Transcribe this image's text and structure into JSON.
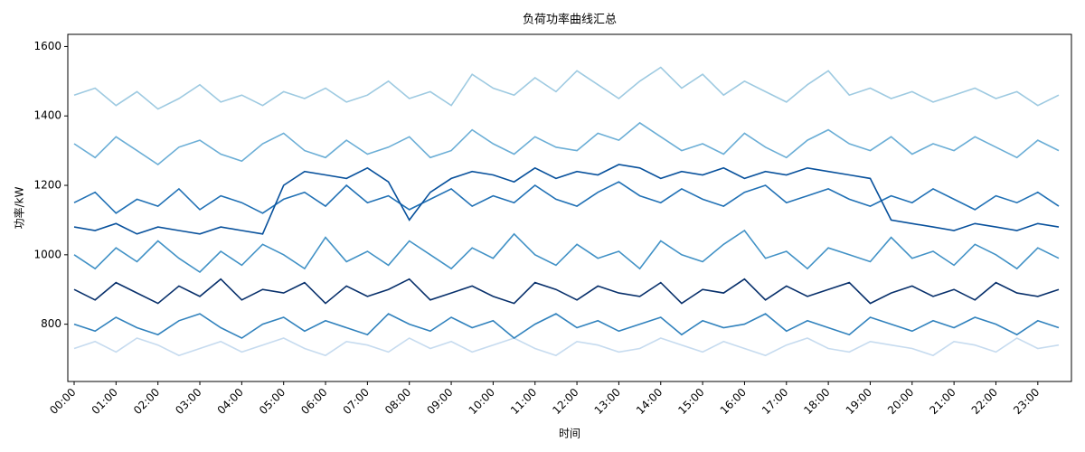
{
  "chart_data": {
    "type": "line",
    "title": "负荷功率曲线汇总",
    "x_label": "时间",
    "y_label": "功率/kW",
    "categories": [
      "00:00",
      null,
      "01:00",
      null,
      "02:00",
      null,
      "03:00",
      null,
      "04:00",
      null,
      "05:00",
      null,
      "06:00",
      null,
      "07:00",
      null,
      "08:00",
      null,
      "09:00",
      null,
      "10:00",
      null,
      "11:00",
      null,
      "12:00",
      null,
      "13:00",
      null,
      "14:00",
      null,
      "15:00",
      null,
      "16:00",
      null,
      "17:00",
      null,
      "18:00",
      null,
      "19:00",
      null,
      "20:00",
      null,
      "21:00",
      null,
      "22:00",
      null,
      "23:00",
      null
    ],
    "ylim": [
      635,
      1635
    ],
    "yticks": [
      800,
      1000,
      1200,
      1400,
      1600
    ],
    "grid": false,
    "series": [
      {
        "color": "#9ecae1",
        "values": [
          1460,
          1480,
          1430,
          1470,
          1420,
          1450,
          1490,
          1440,
          1460,
          1430,
          1470,
          1450,
          1480,
          1440,
          1460,
          1500,
          1450,
          1470,
          1430,
          1520,
          1480,
          1460,
          1510,
          1470,
          1530,
          1490,
          1450,
          1500,
          1540,
          1480,
          1520,
          1460,
          1500,
          1470,
          1440,
          1490,
          1530,
          1460,
          1480,
          1450,
          1470,
          1440,
          1460,
          1480,
          1450,
          1470,
          1430,
          1460
        ]
      },
      {
        "color": "#c6dbef",
        "values": [
          730,
          750,
          720,
          760,
          740,
          710,
          730,
          750,
          720,
          740,
          760,
          730,
          710,
          750,
          740,
          720,
          760,
          730,
          750,
          720,
          740,
          760,
          730,
          710,
          750,
          740,
          720,
          730,
          760,
          740,
          720,
          750,
          730,
          710,
          740,
          760,
          730,
          720,
          750,
          740,
          730,
          710,
          750,
          740,
          720,
          760,
          730,
          740
        ]
      },
      {
        "color": "#6baed6",
        "values": [
          1320,
          1280,
          1340,
          1300,
          1260,
          1310,
          1330,
          1290,
          1270,
          1320,
          1350,
          1300,
          1280,
          1330,
          1290,
          1310,
          1340,
          1280,
          1300,
          1360,
          1320,
          1290,
          1340,
          1310,
          1300,
          1350,
          1330,
          1380,
          1340,
          1300,
          1320,
          1290,
          1350,
          1310,
          1280,
          1330,
          1360,
          1320,
          1300,
          1340,
          1290,
          1320,
          1300,
          1340,
          1310,
          1280,
          1330,
          1300
        ]
      },
      {
        "color": "#4292c6",
        "values": [
          1000,
          960,
          1020,
          980,
          1040,
          990,
          950,
          1010,
          970,
          1030,
          1000,
          960,
          1050,
          980,
          1010,
          970,
          1040,
          1000,
          960,
          1020,
          990,
          1060,
          1000,
          970,
          1030,
          990,
          1010,
          960,
          1040,
          1000,
          980,
          1030,
          1070,
          990,
          1010,
          960,
          1020,
          1000,
          980,
          1050,
          990,
          1010,
          970,
          1030,
          1000,
          960,
          1020,
          990
        ]
      },
      {
        "color": "#3182bd",
        "values": [
          800,
          780,
          820,
          790,
          770,
          810,
          830,
          790,
          760,
          800,
          820,
          780,
          810,
          790,
          770,
          830,
          800,
          780,
          820,
          790,
          810,
          760,
          800,
          830,
          790,
          810,
          780,
          800,
          820,
          770,
          810,
          790,
          800,
          830,
          780,
          810,
          790,
          770,
          820,
          800,
          780,
          810,
          790,
          820,
          800,
          770,
          810,
          790
        ]
      },
      {
        "color": "#2171b5",
        "values": [
          1150,
          1180,
          1120,
          1160,
          1140,
          1190,
          1130,
          1170,
          1150,
          1120,
          1160,
          1180,
          1140,
          1200,
          1150,
          1170,
          1130,
          1160,
          1190,
          1140,
          1170,
          1150,
          1200,
          1160,
          1140,
          1180,
          1210,
          1170,
          1150,
          1190,
          1160,
          1140,
          1180,
          1200,
          1150,
          1170,
          1190,
          1160,
          1140,
          1170,
          1150,
          1190,
          1160,
          1130,
          1170,
          1150,
          1180,
          1140
        ]
      },
      {
        "color": "#08519c",
        "values": [
          1080,
          1070,
          1090,
          1060,
          1080,
          1070,
          1060,
          1080,
          1070,
          1060,
          1200,
          1240,
          1230,
          1220,
          1250,
          1210,
          1100,
          1180,
          1220,
          1240,
          1230,
          1210,
          1250,
          1220,
          1240,
          1230,
          1260,
          1250,
          1220,
          1240,
          1230,
          1250,
          1220,
          1240,
          1230,
          1250,
          1240,
          1230,
          1220,
          1100,
          1090,
          1080,
          1070,
          1090,
          1080,
          1070,
          1090,
          1080
        ]
      },
      {
        "color": "#08306b",
        "values": [
          900,
          870,
          920,
          890,
          860,
          910,
          880,
          930,
          870,
          900,
          890,
          920,
          860,
          910,
          880,
          900,
          930,
          870,
          890,
          910,
          880,
          860,
          920,
          900,
          870,
          910,
          890,
          880,
          920,
          860,
          900,
          890,
          930,
          870,
          910,
          880,
          900,
          920,
          860,
          890,
          910,
          880,
          900,
          870,
          920,
          890,
          880,
          900
        ]
      }
    ]
  }
}
